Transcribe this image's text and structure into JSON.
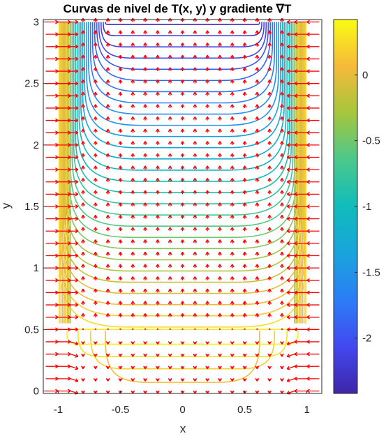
{
  "chart_data": {
    "type": "contour",
    "title": "Curvas de nivel de T(x, y) y gradiente ∇T",
    "xlabel": "x",
    "ylabel": "y",
    "xlim": [
      -1.12,
      1.12
    ],
    "ylim": [
      -0.02,
      3.02
    ],
    "xticks": [
      -1,
      -0.5,
      0,
      0.5,
      1
    ],
    "xtick_labels": [
      "-1",
      "-0.5",
      "0",
      "0.5",
      "1"
    ],
    "yticks": [
      0,
      0.5,
      1,
      1.5,
      2,
      2.5,
      3
    ],
    "ytick_labels": [
      "0",
      "0.5",
      "1",
      "1.5",
      "2",
      "2.5",
      "3"
    ],
    "colorbar": {
      "colormap": "parula",
      "range": [
        -2.42,
        0.42
      ],
      "ticks": [
        0,
        -0.5,
        -1,
        -1.5,
        -2
      ],
      "tick_labels": [
        "0",
        "-0.5",
        "-1",
        "-1.5",
        "-2"
      ]
    },
    "lower_contours": {
      "level_values": [
        0.08,
        0.18,
        0.28,
        0.38
      ],
      "y_bottom": [
        0.07,
        0.18,
        0.28,
        0.38
      ],
      "x_half_width": [
        0.62,
        0.74,
        0.84,
        0.93
      ]
    },
    "upper_contours": {
      "level_count": 28,
      "level_range": [
        0.25,
        -2.35
      ],
      "y_bottom_range": [
        0.52,
        2.98
      ],
      "x_half_width_range": [
        0.99,
        0.62
      ]
    },
    "gradient_field": {
      "x_start": -1.1,
      "x_step": 0.1,
      "x_count": 23,
      "y_start": 0.0,
      "y_step": 0.1,
      "y_count": 31,
      "arrow_color": "#ff0000"
    },
    "colors": {
      "background": "#ffffff",
      "axes": "#262626"
    }
  }
}
